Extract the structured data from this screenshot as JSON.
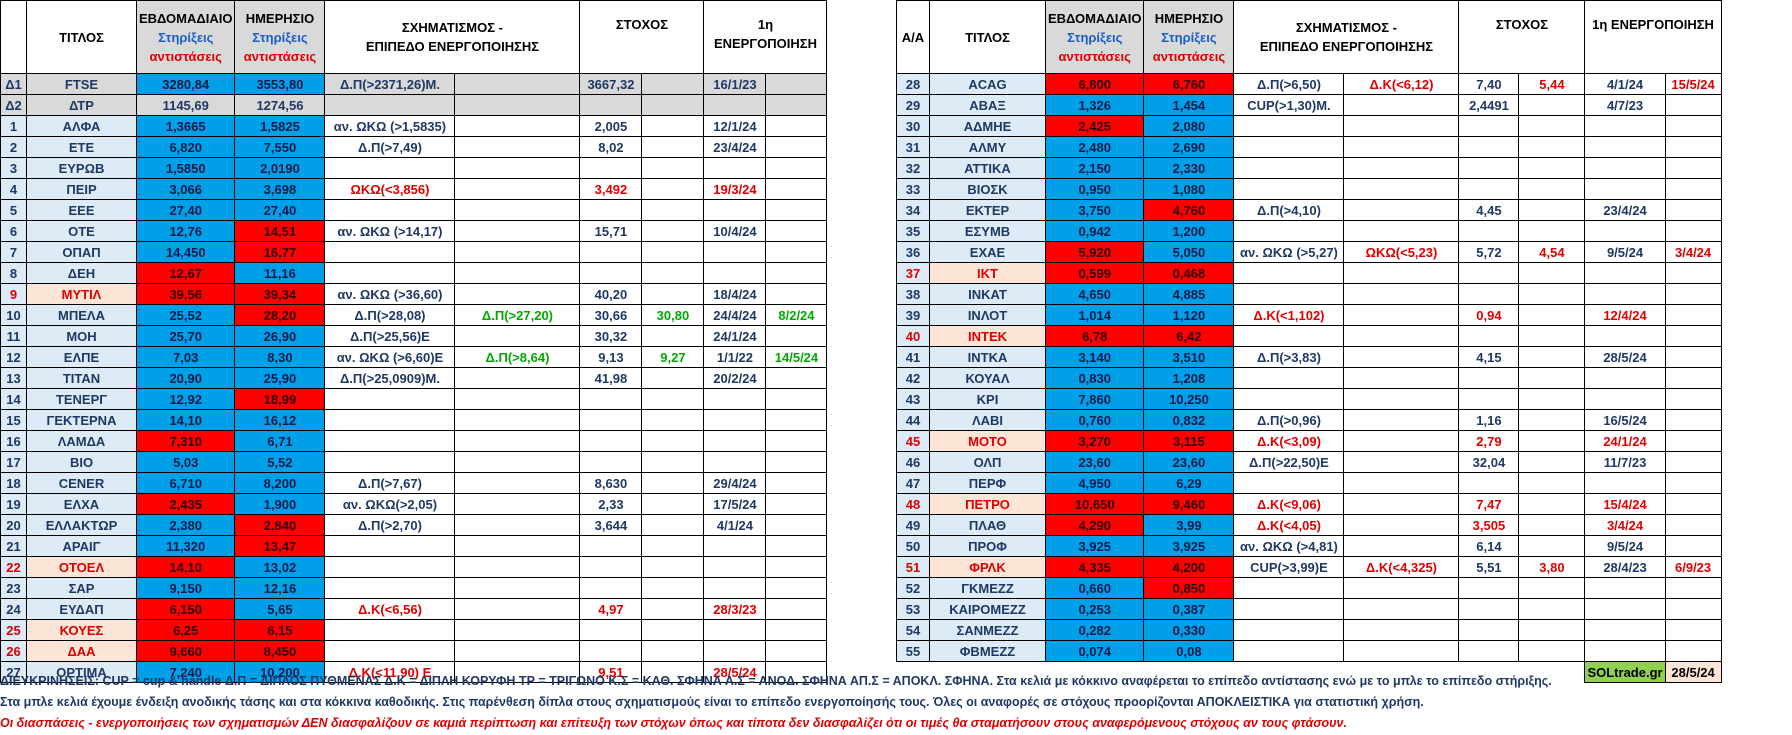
{
  "header": {
    "left": {
      "idx": "",
      "title": "ΤΙΤΛΟΣ",
      "weekly": [
        "ΕΒΔΟΜΑΔΙΑΙΟ",
        "Στηρίξεις",
        "αντιστάσεις"
      ],
      "daily": [
        "ΗΜΕΡΗΣΙΟ",
        "Στηρίξεις",
        "αντιστάσεις"
      ],
      "pattern": [
        "ΣΧΗΜΑΤΙΣΜΟΣ -",
        "ΕΠΙΠΕΔΟ ΕΝΕΡΓΟΠΟΙΗΣΗΣ"
      ],
      "target": "ΣΤΟΧΟΣ",
      "activation": "1η ΕΝΕΡΓΟΠΟΙΗΣΗ"
    },
    "right": {
      "idx": "Α/Α",
      "title": "ΤΙΤΛΟΣ",
      "weekly": [
        "ΕΒΔΟΜΑΔΙΑΙΟ",
        "Στηρίξεις",
        "αντιστάσεις"
      ],
      "daily": [
        "ΗΜΕΡΗΣΙΟ",
        "Στηρίξεις",
        "αντιστάσεις"
      ],
      "pattern": [
        "ΣΧΗΜΑΤΙΣΜΟΣ -",
        "ΕΠΙΠΕΔΟ ΕΝΕΡΓΟΠΟΙΗΣΗΣ"
      ],
      "target": "ΣΤΟΧΟΣ",
      "activation": "1η ΕΝΕΡΓΟΠΟΙΗΣΗ"
    }
  },
  "left_rows": [
    {
      "idx": "Δ1",
      "t": "FTSE",
      "w": "3280,84",
      "wc": "blue",
      "d": "3553,80",
      "dc": "blue",
      "p1": "Δ.Π(>2371,26)Μ.",
      "p2": "",
      "s1": "3667,32",
      "s2": "",
      "a1": "16/1/23",
      "a2": "",
      "grey": true
    },
    {
      "idx": "Δ2",
      "t": "ΔΤΡ",
      "w": "1145,69",
      "wc": "",
      "d": "1274,56",
      "dc": "",
      "p1": "",
      "p2": "",
      "s1": "",
      "s2": "",
      "a1": "",
      "a2": "",
      "grey": true
    },
    {
      "idx": "1",
      "t": "ΑΛΦΑ",
      "w": "1,3665",
      "wc": "blue",
      "d": "1,5825",
      "dc": "blue",
      "p1": "αν. ΩΚΩ (>1,5835)",
      "p2": "",
      "s1": "2,005",
      "s2": "",
      "a1": "12/1/24",
      "a2": ""
    },
    {
      "idx": "2",
      "t": "ΕΤΕ",
      "w": "6,820",
      "wc": "blue",
      "d": "7,550",
      "dc": "blue",
      "p1": "Δ.Π(>7,49)",
      "p2": "",
      "s1": "8,02",
      "s2": "",
      "a1": "23/4/24",
      "a2": ""
    },
    {
      "idx": "3",
      "t": "ΕΥΡΩΒ",
      "w": "1,5850",
      "wc": "blue",
      "d": "2,0190",
      "dc": "blue",
      "p1": "",
      "p2": "",
      "s1": "",
      "s2": "",
      "a1": "",
      "a2": ""
    },
    {
      "idx": "4",
      "t": "ΠΕΙΡ",
      "w": "3,066",
      "wc": "blue",
      "d": "3,698",
      "dc": "blue",
      "p1": "ΩΚΩ(<3,856)",
      "p1c": "red",
      "p2": "",
      "s1": "3,492",
      "s1c": "red",
      "s2": "",
      "a1": "19/3/24",
      "a1c": "red",
      "a2": ""
    },
    {
      "idx": "5",
      "t": "ΕΕΕ",
      "w": "27,40",
      "wc": "blue",
      "d": "27,40",
      "dc": "blue",
      "p1": "",
      "p2": "",
      "s1": "",
      "s2": "",
      "a1": "",
      "a2": ""
    },
    {
      "idx": "6",
      "t": "ΟΤΕ",
      "w": "12,76",
      "wc": "blue",
      "d": "14,51",
      "dc": "red",
      "p1": "αν. ΩΚΩ (>14,17)",
      "p2": "",
      "s1": "15,71",
      "s2": "",
      "a1": "10/4/24",
      "a2": ""
    },
    {
      "idx": "7",
      "t": "ΟΠΑΠ",
      "w": "14,450",
      "wc": "blue",
      "d": "16,77",
      "dc": "red",
      "p1": "",
      "p2": "",
      "s1": "",
      "s2": "",
      "a1": "",
      "a2": ""
    },
    {
      "idx": "8",
      "t": "ΔΕΗ",
      "w": "12,67",
      "wc": "red",
      "d": "11,16",
      "dc": "blue",
      "p1": "",
      "p2": "",
      "s1": "",
      "s2": "",
      "a1": "",
      "a2": ""
    },
    {
      "idx": "9",
      "t": "ΜΥΤΙΛ",
      "tc": "peach",
      "w": "39,56",
      "wc": "red",
      "d": "39,34",
      "dc": "red",
      "p1": "αν. ΩΚΩ (>36,60)",
      "p2": "",
      "s1": "40,20",
      "s2": "",
      "a1": "18/4/24",
      "a2": ""
    },
    {
      "idx": "10",
      "t": "ΜΠΕΛΑ",
      "w": "25,52",
      "wc": "blue",
      "d": "28,20",
      "dc": "red",
      "p1": "Δ.Π(>28,08)",
      "p2": "Δ.Π(>27,20)",
      "p2c": "green",
      "s1": "30,66",
      "s2": "30,80",
      "s2c": "green",
      "a1": "24/4/24",
      "a2": "8/2/24",
      "a2c": "green"
    },
    {
      "idx": "11",
      "t": "ΜΟΗ",
      "w": "25,70",
      "wc": "blue",
      "d": "26,90",
      "dc": "blue",
      "p1": "Δ.Π(>25,56)Ε",
      "p2": "",
      "s1": "30,32",
      "s2": "",
      "a1": "24/1/24",
      "a2": ""
    },
    {
      "idx": "12",
      "t": "ΕΛΠΕ",
      "w": "7,03",
      "wc": "blue",
      "d": "8,30",
      "dc": "blue",
      "p1": "αν. ΩΚΩ (>6,60)Ε",
      "p2": "Δ.Π(>8,64)",
      "p2c": "green",
      "s1": "9,13",
      "s2": "9,27",
      "s2c": "green",
      "a1": "1/1/22",
      "a2": "14/5/24",
      "a2c": "green"
    },
    {
      "idx": "13",
      "t": "ΤΙΤΑΝ",
      "w": "20,90",
      "wc": "blue",
      "d": "25,90",
      "dc": "blue",
      "p1": "Δ.Π(>25,0909)Μ.",
      "p2": "",
      "s1": "41,98",
      "s2": "",
      "a1": "20/2/24",
      "a2": ""
    },
    {
      "idx": "14",
      "t": "ΤΕΝΕΡΓ",
      "w": "12,92",
      "wc": "blue",
      "d": "18,99",
      "dc": "red",
      "p1": "",
      "p2": "",
      "s1": "",
      "s2": "",
      "a1": "",
      "a2": ""
    },
    {
      "idx": "15",
      "t": "ΓΕΚΤΕΡΝΑ",
      "w": "14,10",
      "wc": "blue",
      "d": "16,12",
      "dc": "blue",
      "p1": "",
      "p2": "",
      "s1": "",
      "s2": "",
      "a1": "",
      "a2": ""
    },
    {
      "idx": "16",
      "t": "ΛΑΜΔΑ",
      "w": "7,310",
      "wc": "red",
      "d": "6,71",
      "dc": "blue",
      "p1": "",
      "p2": "",
      "s1": "",
      "s2": "",
      "a1": "",
      "a2": ""
    },
    {
      "idx": "17",
      "t": "ΒΙΟ",
      "w": "5,03",
      "wc": "blue",
      "d": "5,52",
      "dc": "blue",
      "p1": "",
      "p2": "",
      "s1": "",
      "s2": "",
      "a1": "",
      "a2": ""
    },
    {
      "idx": "18",
      "t": "CENER",
      "w": "6,710",
      "wc": "blue",
      "d": "8,200",
      "dc": "blue",
      "p1": "Δ.Π(>7,67)",
      "p2": "",
      "s1": "8,630",
      "s2": "",
      "a1": "29/4/24",
      "a2": ""
    },
    {
      "idx": "19",
      "t": "ΕΛΧΑ",
      "w": "2,435",
      "wc": "red",
      "d": "1,900",
      "dc": "blue",
      "p1": "αν. ΩΚΩ(>2,05)",
      "p2": "",
      "s1": "2,33",
      "s2": "",
      "a1": "17/5/24",
      "a2": ""
    },
    {
      "idx": "20",
      "t": "ΕΛΛΑΚΤΩΡ",
      "w": "2,380",
      "wc": "blue",
      "d": "2,840",
      "dc": "red",
      "p1": "Δ.Π(>2,70)",
      "p2": "",
      "s1": "3,644",
      "s2": "",
      "a1": "4/1/24",
      "a2": ""
    },
    {
      "idx": "21",
      "t": "ΑΡΑΙΓ",
      "w": "11,320",
      "wc": "blue",
      "d": "13,47",
      "dc": "red",
      "p1": "",
      "p2": "",
      "s1": "",
      "s2": "",
      "a1": "",
      "a2": ""
    },
    {
      "idx": "22",
      "t": "ΟΤΟΕΛ",
      "tc": "peach",
      "w": "14,10",
      "wc": "red",
      "d": "13,02",
      "dc": "blue",
      "p1": "",
      "p2": "",
      "s1": "",
      "s2": "",
      "a1": "",
      "a2": ""
    },
    {
      "idx": "23",
      "t": "ΣΑΡ",
      "w": "9,150",
      "wc": "blue",
      "d": "12,16",
      "dc": "blue",
      "p1": "",
      "p2": "",
      "s1": "",
      "s2": "",
      "a1": "",
      "a2": ""
    },
    {
      "idx": "24",
      "t": "ΕΥΔΑΠ",
      "w": "6,150",
      "wc": "red",
      "d": "5,65",
      "dc": "blue",
      "p1": "Δ.Κ(<6,56)",
      "p1c": "red",
      "p2": "",
      "s1": "4,97",
      "s1c": "red",
      "s2": "",
      "a1": "28/3/23",
      "a1c": "red",
      "a2": ""
    },
    {
      "idx": "25",
      "t": "ΚΟΥΕΣ",
      "tc": "peach",
      "w": "6,25",
      "wc": "red",
      "d": "6,15",
      "dc": "red",
      "p1": "",
      "p2": "",
      "s1": "",
      "s2": "",
      "a1": "",
      "a2": ""
    },
    {
      "idx": "26",
      "t": "ΔΑΑ",
      "tc": "peach",
      "w": "9,660",
      "wc": "red",
      "d": "8,450",
      "dc": "red",
      "p1": "",
      "p2": "",
      "s1": "",
      "s2": "",
      "a1": "",
      "a2": ""
    },
    {
      "idx": "27",
      "t": "OPTIMA",
      "w": "7,240",
      "wc": "blue",
      "d": "10,200",
      "dc": "blue",
      "p1": "Δ.Κ(<11,90)  Ε",
      "p1c": "red",
      "p2": "",
      "s1": "9,51",
      "s1c": "red",
      "s2": "",
      "a1": "28/5/24",
      "a1c": "red",
      "a2": ""
    }
  ],
  "right_rows": [
    {
      "idx": "28",
      "t": "ACAG",
      "w": "6,800",
      "wc": "red",
      "d": "6,760",
      "dc": "red",
      "p1": "Δ.Π(>6,50)",
      "p2": "Δ.Κ(<6,12)",
      "p2c": "red",
      "s1": "7,40",
      "s2": "5,44",
      "s2c": "red",
      "a1": "4/1/24",
      "a2": "15/5/24",
      "a2c": "red"
    },
    {
      "idx": "29",
      "t": "ΑΒΑΞ",
      "w": "1,326",
      "wc": "blue",
      "d": "1,454",
      "dc": "blue",
      "p1": "CUP(>1,30)Μ.",
      "p2": "",
      "s1": "2,4491",
      "s2": "",
      "a1": "4/7/23",
      "a2": ""
    },
    {
      "idx": "30",
      "t": "ΑΔΜΗΕ",
      "w": "2,425",
      "wc": "red",
      "d": "2,080",
      "dc": "blue",
      "p1": "",
      "p2": "",
      "s1": "",
      "s2": "",
      "a1": "",
      "a2": ""
    },
    {
      "idx": "31",
      "t": "ΑΛΜΥ",
      "w": "2,480",
      "wc": "blue",
      "d": "2,690",
      "dc": "blue",
      "p1": "",
      "p2": "",
      "s1": "",
      "s2": "",
      "a1": "",
      "a2": ""
    },
    {
      "idx": "32",
      "t": "ΑΤΤΙΚΑ",
      "w": "2,150",
      "wc": "blue",
      "d": "2,330",
      "dc": "blue",
      "p1": "",
      "p2": "",
      "s1": "",
      "s2": "",
      "a1": "",
      "a2": ""
    },
    {
      "idx": "33",
      "t": "ΒΙΟΣΚ",
      "w": "0,950",
      "wc": "blue",
      "d": "1,080",
      "dc": "blue",
      "p1": "",
      "p2": "",
      "s1": "",
      "s2": "",
      "a1": "",
      "a2": ""
    },
    {
      "idx": "34",
      "t": "ΕΚΤΕΡ",
      "w": "3,750",
      "wc": "blue",
      "d": "4,760",
      "dc": "red",
      "p1": "Δ.Π(>4,10)",
      "p2": "",
      "s1": "4,45",
      "s2": "",
      "a1": "23/4/24",
      "a2": ""
    },
    {
      "idx": "35",
      "t": "ΕΣΥΜΒ",
      "w": "0,942",
      "wc": "blue",
      "d": "1,200",
      "dc": "blue",
      "p1": "",
      "p2": "",
      "s1": "",
      "s2": "",
      "a1": "",
      "a2": ""
    },
    {
      "idx": "36",
      "t": "ΕΧΑΕ",
      "w": "5,920",
      "wc": "red",
      "d": "5,050",
      "dc": "blue",
      "p1": "αν. ΩΚΩ (>5,27)",
      "p2": "ΩΚΩ(<5,23)",
      "p2c": "red",
      "s1": "5,72",
      "s2": "4,54",
      "s2c": "red",
      "a1": "9/5/24",
      "a2": "3/4/24",
      "a2c": "red"
    },
    {
      "idx": "37",
      "t": "ΙΚΤ",
      "tc": "peach",
      "w": "0,599",
      "wc": "red",
      "d": "0,468",
      "dc": "red",
      "p1": "",
      "p2": "",
      "s1": "",
      "s2": "",
      "a1": "",
      "a2": ""
    },
    {
      "idx": "38",
      "t": "ΙΝΚΑΤ",
      "w": "4,650",
      "wc": "blue",
      "d": "4,885",
      "dc": "blue",
      "p1": "",
      "p2": "",
      "s1": "",
      "s2": "",
      "a1": "",
      "a2": ""
    },
    {
      "idx": "39",
      "t": "ΙΝΛΟΤ",
      "w": "1,014",
      "wc": "blue",
      "d": "1,120",
      "dc": "blue",
      "p1": "Δ.Κ(<1,102)",
      "p1c": "red",
      "p2": "",
      "s1": "0,94",
      "s1c": "red",
      "s2": "",
      "a1": "12/4/24",
      "a1c": "red",
      "a2": ""
    },
    {
      "idx": "40",
      "t": "ΙΝΤΕΚ",
      "tc": "peach",
      "w": "6,78",
      "wc": "red",
      "d": "6,42",
      "dc": "red",
      "p1": "",
      "p2": "",
      "s1": "",
      "s2": "",
      "a1": "",
      "a2": ""
    },
    {
      "idx": "41",
      "t": "ΙΝΤΚΑ",
      "w": "3,140",
      "wc": "blue",
      "d": "3,510",
      "dc": "blue",
      "p1": "Δ.Π(>3,83)",
      "p2": "",
      "s1": "4,15",
      "s2": "",
      "a1": "28/5/24",
      "a2": ""
    },
    {
      "idx": "42",
      "t": "ΚΟΥΑΛ",
      "w": "0,830",
      "wc": "blue",
      "d": "1,208",
      "dc": "blue",
      "p1": "",
      "p2": "",
      "s1": "",
      "s2": "",
      "a1": "",
      "a2": ""
    },
    {
      "idx": "43",
      "t": "ΚΡΙ",
      "w": "7,860",
      "wc": "blue",
      "d": "10,250",
      "dc": "blue",
      "p1": "",
      "p2": "",
      "s1": "",
      "s2": "",
      "a1": "",
      "a2": ""
    },
    {
      "idx": "44",
      "t": "ΛΑΒΙ",
      "w": "0,760",
      "wc": "blue",
      "d": "0,832",
      "dc": "blue",
      "p1": "Δ.Π(>0,96)",
      "p2": "",
      "s1": "1,16",
      "s2": "",
      "a1": "16/5/24",
      "a2": ""
    },
    {
      "idx": "45",
      "t": "ΜΟΤΟ",
      "tc": "peach",
      "w": "3,270",
      "wc": "red",
      "d": "3,115",
      "dc": "red",
      "p1": "Δ.Κ(<3,09)",
      "p1c": "red",
      "p2": "",
      "s1": "2,79",
      "s1c": "red",
      "s2": "",
      "a1": "24/1/24",
      "a1c": "red",
      "a2": ""
    },
    {
      "idx": "46",
      "t": "ΟΛΠ",
      "w": "23,60",
      "wc": "blue",
      "d": "23,60",
      "dc": "blue",
      "p1": "Δ.Π(>22,50)Ε",
      "p2": "",
      "s1": "32,04",
      "s2": "",
      "a1": "11/7/23",
      "a2": ""
    },
    {
      "idx": "47",
      "t": "ΠΕΡΦ",
      "w": "4,950",
      "wc": "blue",
      "d": "6,29",
      "dc": "blue",
      "p1": "",
      "p2": "",
      "s1": "",
      "s2": "",
      "a1": "",
      "a2": ""
    },
    {
      "idx": "48",
      "t": "ΠΕΤΡΟ",
      "tc": "peach",
      "w": "10,650",
      "wc": "red",
      "d": "9,460",
      "dc": "red",
      "p1": "Δ.Κ(<9,06)",
      "p1c": "red",
      "p2": "",
      "s1": "7,47",
      "s1c": "red",
      "s2": "",
      "a1": "15/4/24",
      "a1c": "red",
      "a2": ""
    },
    {
      "idx": "49",
      "t": "ΠΛΑΘ",
      "w": "4,290",
      "wc": "red",
      "d": "3,99",
      "dc": "blue",
      "p1": "Δ.Κ(<4,05)",
      "p1c": "red",
      "p2": "",
      "s1": "3,505",
      "s1c": "red",
      "s2": "",
      "a1": "3/4/24",
      "a1c": "red",
      "a2": ""
    },
    {
      "idx": "50",
      "t": "ΠΡΟΦ",
      "w": "3,925",
      "wc": "blue",
      "d": "3,925",
      "dc": "blue",
      "p1": "αν. ΩΚΩ (>4,81)",
      "p2": "",
      "s1": "6,14",
      "s2": "",
      "a1": "9/5/24",
      "a2": ""
    },
    {
      "idx": "51",
      "t": "ΦΡΛΚ",
      "tc": "peach",
      "w": "4,335",
      "wc": "red",
      "d": "4,200",
      "dc": "red",
      "p1": "CUP(>3,99)Ε",
      "p2": "Δ.Κ(<4,325)",
      "p2c": "red",
      "s1": "5,51",
      "s2": "3,80",
      "s2c": "red",
      "a1": "28/4/23",
      "a2": "6/9/23",
      "a2c": "red"
    },
    {
      "idx": "52",
      "t": "ΓΚΜΕΖΖ",
      "w": "0,660",
      "wc": "blue",
      "d": "0,850",
      "dc": "red",
      "p1": "",
      "p2": "",
      "s1": "",
      "s2": "",
      "a1": "",
      "a2": ""
    },
    {
      "idx": "53",
      "t": "ΚΑΙΡΟΜΕΖΖ",
      "w": "0,253",
      "wc": "blue",
      "d": "0,387",
      "dc": "blue",
      "p1": "",
      "p2": "",
      "s1": "",
      "s2": "",
      "a1": "",
      "a2": ""
    },
    {
      "idx": "54",
      "t": "ΣΑΝΜΕΖΖ",
      "w": "0,282",
      "wc": "blue",
      "d": "0,330",
      "dc": "blue",
      "p1": "",
      "p2": "",
      "s1": "",
      "s2": "",
      "a1": "",
      "a2": ""
    },
    {
      "idx": "55",
      "t": "ΦΒΜΕΖΖ",
      "w": "0,074",
      "wc": "blue",
      "d": "0,08",
      "dc": "blue",
      "p1": "",
      "p2": "",
      "s1": "",
      "s2": "",
      "a1": "",
      "a2": ""
    }
  ],
  "brand": {
    "name": "SOLtrade.gr",
    "date": "28/5/24"
  },
  "footer": {
    "line1": "ΔΙΕΥΚΡΙΝΗΣΕΙΣ: CUP = cup & handle   Δ.Π = ΔΙΠΛΟΣ ΠΥΘΜΕΝΑΣ  Δ.Κ = ΔΙΠΛΗ ΚΟΡΥΦΗ ΤΡ = ΤΡΙΓΩΝΟ  Κ.Σ = ΚΑΘ. ΣΦΗΝΑ  Α.Σ = ΑΝΟΔ. ΣΦΗΝΑ  ΑΠ.Σ = ΑΠΟΚΛ. ΣΦΗΝΑ. Στα κελιά με κόκκινο αναφέρεται το επίπεδο αντίστασης ενώ με το μπλε το επίπεδο στήριξης.",
    "line2": "Στα μπλε κελιά έχουμε ένδειξη ανοδικής τάσης και στα κόκκινα καθοδικής. Στις παρένθεση δίπλα στους σχηματισμούς είναι το επίπεδο ενεργοποίησής τους. Όλες οι αναφορές σε στόχους προορίζονται ΑΠΟΚΛΕΙΣΤΙΚΑ για  στατιστική χρήση.",
    "line3": "Οι διασπάσεις - ενεργοποιήσεις των σχηματισμών  ΔΕΝ διασφαλίζουν σε καμιά περίπτωση και επίτευξη των στόχων όπως και τίποτα δεν διασφαλίζει ότι οι τιμές θα σταματήσουν στους αναφερόμενους στόχους αν τους φτάσουν."
  }
}
